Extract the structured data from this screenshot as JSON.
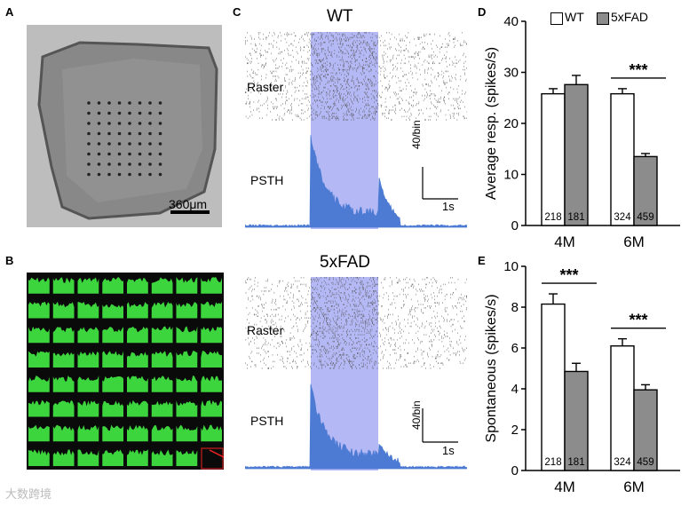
{
  "panels": {
    "a": {
      "label": "A",
      "scale_bar": "360μm"
    },
    "b": {
      "label": "B"
    },
    "c": {
      "label": "C",
      "wt": {
        "title": "WT",
        "raster_label": "Raster",
        "psth_label": "PSTH",
        "scale_y": "40/bin",
        "scale_x": "1s"
      },
      "fad": {
        "title": "5xFAD",
        "raster_label": "Raster",
        "psth_label": "PSTH",
        "scale_y": "40/bin",
        "scale_x": "1s"
      }
    },
    "d": {
      "label": "D"
    },
    "e": {
      "label": "E"
    }
  },
  "legend": {
    "wt": "WT",
    "fad": "5xFAD"
  },
  "watermark": "大数跨境",
  "colors": {
    "wt_bar": "#ffffff",
    "fad_bar": "#8c8c8c",
    "stim": "#8888ee",
    "grid_green": "#3dd53d"
  },
  "chart_data": [
    {
      "type": "bar",
      "panel": "D",
      "categories": [
        "4M",
        "6M"
      ],
      "series": [
        {
          "name": "WT",
          "values": [
            25.8,
            25.8
          ],
          "errors": [
            1.0,
            1.0
          ],
          "n": [
            "218",
            "324"
          ]
        },
        {
          "name": "5xFAD",
          "values": [
            27.6,
            13.5
          ],
          "errors": [
            1.8,
            0.6
          ],
          "n": [
            "181",
            "459"
          ]
        }
      ],
      "ylabel": "Average resp. (spikes/s)",
      "ylim": [
        0,
        40
      ],
      "yticks": [
        0,
        10,
        20,
        30,
        40
      ],
      "significance": [
        {
          "category": "6M",
          "text": "***"
        }
      ]
    },
    {
      "type": "bar",
      "panel": "E",
      "categories": [
        "4M",
        "6M"
      ],
      "series": [
        {
          "name": "WT",
          "values": [
            8.15,
            6.1
          ],
          "errors": [
            0.5,
            0.35
          ],
          "n": [
            "218",
            "324"
          ]
        },
        {
          "name": "5xFAD",
          "values": [
            4.85,
            3.95
          ],
          "errors": [
            0.4,
            0.25
          ],
          "n": [
            "181",
            "459"
          ]
        }
      ],
      "ylabel": "Spontaneous (spikes/s)",
      "ylim": [
        0,
        10
      ],
      "yticks": [
        0,
        2,
        4,
        6,
        8,
        10
      ],
      "significance": [
        {
          "category": "4M",
          "text": "***"
        },
        {
          "category": "6M",
          "text": "***"
        }
      ]
    }
  ]
}
